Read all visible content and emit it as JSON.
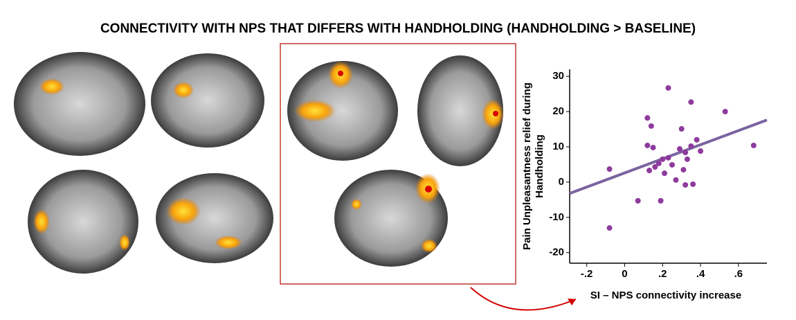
{
  "chart_data": {
    "type": "scatter",
    "title": "CONNECTIVITY WITH NPS THAT DIFFERS WITH HANDHOLDING (HANDHOLDING > BASELINE)",
    "xlabel": "SI – NPS connectivity increase",
    "ylabel": "Pain Unpleasantness relief during Handholding",
    "color": "#8e3a9d",
    "line_color": "#7b64a0",
    "x": [
      -0.08,
      -0.08,
      0.07,
      0.12,
      0.14,
      0.12,
      0.15,
      0.13,
      0.18,
      0.16,
      0.2,
      0.21,
      0.19,
      0.23,
      0.23,
      0.25,
      0.27,
      0.3,
      0.29,
      0.32,
      0.31,
      0.33,
      0.32,
      0.35,
      0.36,
      0.38,
      0.4,
      0.35,
      0.53,
      0.68
    ],
    "values": [
      3.7,
      -13,
      -5.3,
      18.2,
      15.9,
      10.4,
      9.8,
      3.3,
      5.3,
      4.3,
      6.5,
      2.5,
      -5.3,
      6.9,
      26.7,
      4.9,
      0.6,
      15.1,
      9.4,
      8.4,
      3.5,
      6.5,
      -0.8,
      10.2,
      -0.6,
      12,
      8.8,
      22.7,
      20,
      10.4
    ],
    "fit": {
      "x": [
        -0.29,
        0.75
      ],
      "y": [
        -3.2,
        17.6
      ]
    },
    "xlim": [
      -0.29,
      0.75
    ],
    "ylim": [
      -23,
      32
    ],
    "xticks": [
      {
        "value": -0.2,
        "label": "-.2"
      },
      0,
      {
        "value": 0.2,
        "label": ".2"
      },
      {
        "value": 0.4,
        "label": ".4"
      },
      {
        "value": 0.6,
        "label": ".6"
      }
    ],
    "yticks": [
      -20,
      -10,
      0,
      10,
      20,
      30
    ]
  }
}
